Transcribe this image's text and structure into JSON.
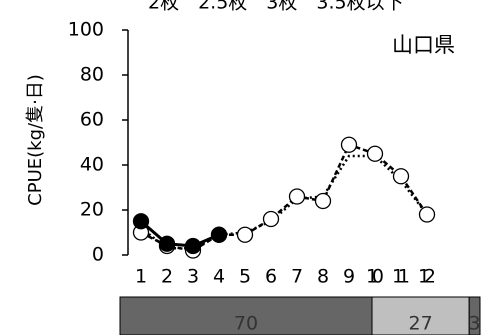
{
  "chart_data": {
    "type": "line",
    "top_caption": "2枚　2.5枚　3枚　3.5枚以下",
    "annotation": "山口県",
    "y_label": "CPUE(kg/隻·日)",
    "categories": [
      "1",
      "2",
      "3",
      "4",
      "5",
      "6",
      "7",
      "8",
      "9",
      "10",
      "11",
      "12"
    ],
    "ylim": [
      0,
      100
    ],
    "yticks": [
      0,
      20,
      40,
      60,
      80,
      100
    ],
    "series": [
      {
        "color": "#000000",
        "line_style": "dotted",
        "marker": "none",
        "values": [
          12,
          3,
          3,
          9,
          10,
          15,
          25,
          26,
          44,
          44,
          33,
          18
        ]
      },
      {
        "color": "#000000",
        "line_style": "dashed",
        "marker": "open",
        "values": [
          10,
          4,
          2,
          9,
          9,
          16,
          26,
          24,
          49,
          45,
          35,
          18
        ]
      },
      {
        "color": "#000000",
        "line_style": "solid",
        "marker": "filled",
        "values": [
          15,
          5,
          4,
          9,
          null,
          null,
          null,
          null,
          null,
          null,
          null,
          null
        ]
      }
    ]
  },
  "share_bar": {
    "type": "stacked_bar",
    "values": [
      70,
      27,
      3
    ],
    "colors": [
      "#666666",
      "#bfbfbf",
      "#666666"
    ]
  }
}
